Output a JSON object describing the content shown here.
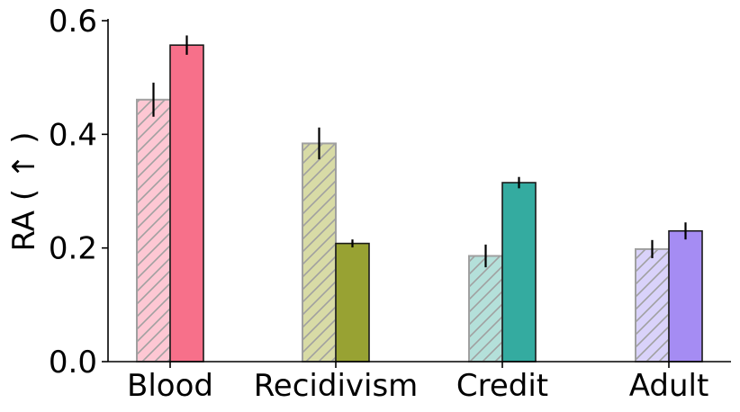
{
  "chart_data": {
    "type": "bar",
    "categories": [
      "Blood",
      "Recidivism",
      "Credit",
      "Adult"
    ],
    "ylabel": "RA ( ↑ )",
    "ylim": [
      0,
      0.6
    ],
    "yticks": [
      0.0,
      0.2,
      0.4,
      0.6
    ],
    "ytick_labels": [
      "0.0",
      "0.2",
      "0.4",
      "0.6"
    ],
    "grid": false,
    "legend": "none",
    "series": [
      {
        "style": "hatched-light",
        "values": [
          0.461,
          0.384,
          0.186,
          0.198
        ],
        "errors": [
          0.03,
          0.028,
          0.02,
          0.016
        ]
      },
      {
        "style": "solid",
        "values": [
          0.557,
          0.208,
          0.315,
          0.23
        ],
        "errors": [
          0.017,
          0.007,
          0.01,
          0.015
        ]
      }
    ],
    "colors": {
      "light": [
        "#fdc7d3",
        "#d8dba6",
        "#b4e0da",
        "#d9d2fa"
      ],
      "solid": [
        "#f7708a",
        "#98a233",
        "#34aba0",
        "#a58cf3"
      ],
      "hatch_stroke": "#a0a0a0",
      "solid_stroke": "#1a1a1a",
      "error_bar": "#000000"
    }
  }
}
